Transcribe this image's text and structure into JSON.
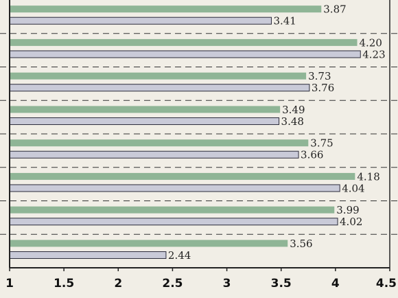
{
  "chart_data": {
    "type": "bar",
    "orientation": "horizontal",
    "title": "",
    "xlabel": "",
    "ylabel": "",
    "xlim": [
      1,
      4.5
    ],
    "x_ticks": [
      "1",
      "1.5",
      "2",
      "2.5",
      "3",
      "3.5",
      "4",
      "4.5"
    ],
    "x_tick_values": [
      1,
      1.5,
      2,
      2.5,
      3,
      3.5,
      4,
      4.5
    ],
    "grid": "dashed horizontal separators between groups",
    "legend": "none",
    "series": [
      {
        "color": "#8fb596",
        "values": [
          3.87,
          4.2,
          3.73,
          3.49,
          3.75,
          4.18,
          3.99,
          3.56
        ],
        "labels": [
          "3.87",
          "4.20",
          "3.73",
          "3.49",
          "3.75",
          "4.18",
          "3.99",
          "3.56"
        ]
      },
      {
        "color": "#c9cad8",
        "outline": "#2a2a3a",
        "values": [
          3.41,
          4.23,
          3.76,
          3.48,
          3.66,
          4.04,
          4.02,
          2.44
        ],
        "labels": [
          "3.41",
          "4.23",
          "3.76",
          "3.48",
          "3.66",
          "4.04",
          "4.02",
          "2.44"
        ]
      }
    ]
  },
  "colors": {
    "background": "#f1eee6",
    "plot_background": "#f1eee6",
    "axis": "#222222",
    "grid": "#333333"
  }
}
